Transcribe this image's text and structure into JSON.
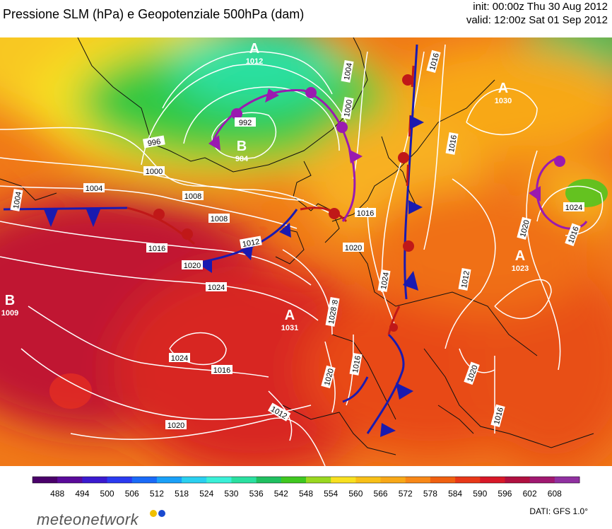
{
  "header": {
    "title": "Pressione SLM (hPa) e Geopotenziale 500hPa (dam)",
    "init": "init: 00:00z Thu 30 Aug 2012",
    "valid": "valid: 12:00z Sat 01 Sep 2012"
  },
  "pressure_centers": [
    {
      "type": "A",
      "value": "1012",
      "kind": "high"
    },
    {
      "type": "B",
      "value": "984",
      "kind": "low"
    },
    {
      "type": "A",
      "value": "1030",
      "kind": "high"
    },
    {
      "type": "B",
      "value": "1009",
      "kind": "low"
    },
    {
      "type": "A",
      "value": "1031",
      "kind": "high"
    },
    {
      "type": "A",
      "value": "1023",
      "kind": "high"
    }
  ],
  "isobar_labels": [
    "1016",
    "1004",
    "1000",
    "992",
    "996",
    "1000",
    "1004",
    "1008",
    "1004",
    "1016",
    "1020",
    "1024",
    "1008",
    "1012",
    "1016",
    "1020",
    "1024",
    "1028",
    "1024",
    "1016",
    "1020",
    "1028",
    "1024",
    "1020",
    "1016",
    "1012",
    "1016",
    "1012",
    "1016",
    "1020",
    "1020",
    "1016",
    "1024"
  ],
  "colorbar": {
    "ticks": [
      "488",
      "494",
      "500",
      "506",
      "512",
      "518",
      "524",
      "530",
      "536",
      "542",
      "548",
      "554",
      "560",
      "566",
      "572",
      "578",
      "584",
      "590",
      "596",
      "602",
      "608"
    ],
    "colors": [
      "#4a006a",
      "#5a0a9a",
      "#3a1ad0",
      "#2a3af0",
      "#1a6af8",
      "#1aa0f8",
      "#2ad0f0",
      "#3af0d8",
      "#2ae0a0",
      "#20c060",
      "#40c820",
      "#9ad820",
      "#f8e020",
      "#f8c018",
      "#f8a818",
      "#f88818",
      "#f06010",
      "#e83818",
      "#d81828",
      "#b01040",
      "#a01870",
      "#9030a0"
    ]
  },
  "footer": {
    "logo": "meteonetwork",
    "dati": "DATI:  GFS  1.0°",
    "logo_dot_colors": [
      "#f0c000",
      "#1a4ad0"
    ]
  }
}
